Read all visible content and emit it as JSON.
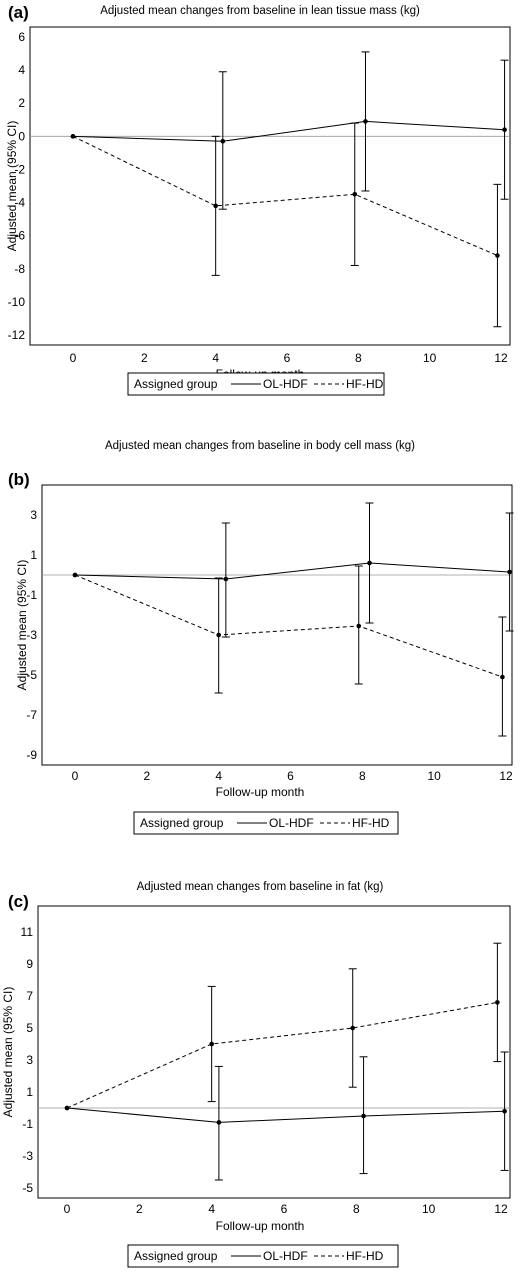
{
  "legend": {
    "title": "Assigned group",
    "entries": [
      {
        "label": "OL-HDF",
        "dash": "solid"
      },
      {
        "label": "HF-HD",
        "dash": "dashed"
      }
    ]
  },
  "chart_data": [
    {
      "type": "line",
      "panel_label": "(a)",
      "title": "Adjusted mean changes from baseline in lean tissue mass (kg)",
      "xlabel": "Follow-up month",
      "ylabel": "Adjusted mean (95% CI)",
      "xlim": [
        0,
        12
      ],
      "ylim": [
        -12,
        6
      ],
      "xticks": [
        0,
        2,
        4,
        6,
        8,
        10,
        12
      ],
      "yticks": [
        6,
        4,
        2,
        0,
        -2,
        -4,
        -6,
        -8,
        -10,
        -12
      ],
      "legend_position": "bottom",
      "reference_line": 0,
      "series": [
        {
          "name": "OL-HDF",
          "dash": "solid",
          "x": [
            0,
            4.2,
            8.2,
            12.1
          ],
          "y": [
            0,
            -0.3,
            0.9,
            0.4
          ],
          "ci_low": [
            null,
            -4.4,
            -3.3,
            -3.8
          ],
          "ci_high": [
            null,
            3.9,
            5.1,
            4.6
          ]
        },
        {
          "name": "HF-HD",
          "dash": "dashed",
          "x": [
            0,
            4.0,
            7.9,
            11.9
          ],
          "y": [
            0,
            -4.2,
            -3.5,
            -7.2
          ],
          "ci_low": [
            null,
            -8.4,
            -7.8,
            -11.5
          ],
          "ci_high": [
            null,
            0,
            0.8,
            -2.9
          ]
        }
      ]
    },
    {
      "type": "line",
      "panel_label": "(b)",
      "title": "Adjusted mean changes from baseline in body cell mass (kg)",
      "xlabel": "Follow-up month",
      "ylabel": "Adjusted mean (95% CI)",
      "xlim": [
        0,
        12
      ],
      "ylim": [
        -9,
        4
      ],
      "xticks": [
        0,
        2,
        4,
        6,
        8,
        10,
        12
      ],
      "yticks": [
        3,
        1,
        -1,
        -3,
        -5,
        -7,
        -9
      ],
      "legend_position": "bottom",
      "reference_line": 0,
      "series": [
        {
          "name": "OL-HDF",
          "dash": "solid",
          "x": [
            0,
            4.2,
            8.2,
            12.1
          ],
          "y": [
            0,
            -0.2,
            0.6,
            0.15
          ],
          "ci_low": [
            null,
            -3.1,
            -2.4,
            -2.8
          ],
          "ci_high": [
            null,
            2.6,
            3.6,
            3.1
          ]
        },
        {
          "name": "HF-HD",
          "dash": "dashed",
          "x": [
            0,
            4.0,
            7.9,
            11.9
          ],
          "y": [
            0,
            -3.0,
            -2.55,
            -5.1
          ],
          "ci_low": [
            null,
            -5.9,
            -5.45,
            -8.05
          ],
          "ci_high": [
            null,
            -0.15,
            0.45,
            -2.1
          ]
        }
      ]
    },
    {
      "type": "line",
      "panel_label": "(c)",
      "title": "Adjusted mean changes from baseline in fat (kg)",
      "xlabel": "Follow-up month",
      "ylabel": "Adjusted mean (95% CI)",
      "xlim": [
        0,
        12
      ],
      "ylim": [
        -5,
        12
      ],
      "xticks": [
        0,
        2,
        4,
        6,
        8,
        10,
        12
      ],
      "yticks": [
        11,
        9,
        7,
        5,
        3,
        1,
        -1,
        -3,
        -5
      ],
      "legend_position": "bottom",
      "reference_line": 0,
      "series": [
        {
          "name": "OL-HDF",
          "dash": "solid",
          "x": [
            0,
            4.2,
            8.2,
            12.1
          ],
          "y": [
            0,
            -0.9,
            -0.5,
            -0.2
          ],
          "ci_low": [
            null,
            -4.5,
            -4.1,
            -3.9
          ],
          "ci_high": [
            null,
            2.6,
            3.2,
            3.5
          ]
        },
        {
          "name": "HF-HD",
          "dash": "dashed",
          "x": [
            0,
            4.0,
            7.9,
            11.9
          ],
          "y": [
            0,
            4.0,
            5.0,
            6.6
          ],
          "ci_low": [
            null,
            0.4,
            1.3,
            2.9
          ],
          "ci_high": [
            null,
            7.6,
            8.7,
            10.3
          ]
        }
      ]
    }
  ]
}
